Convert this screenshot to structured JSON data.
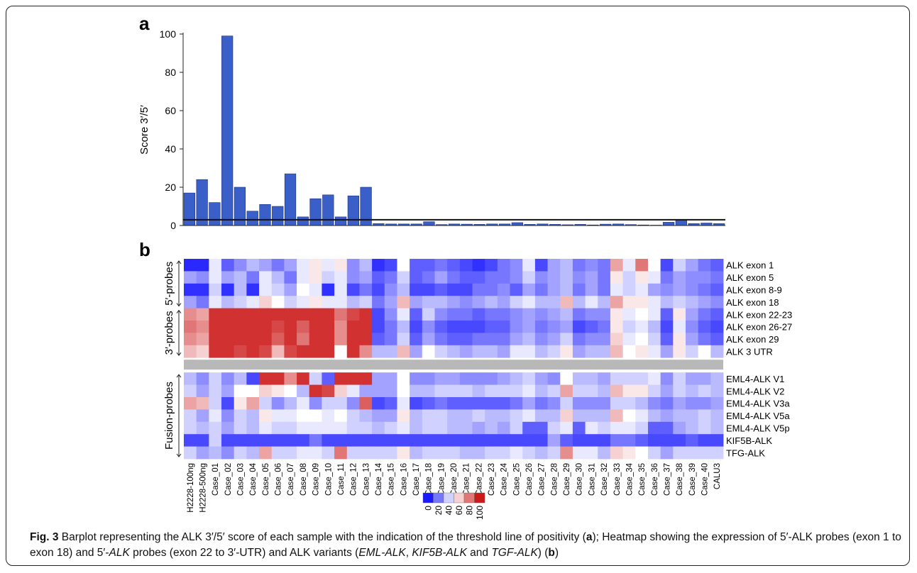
{
  "chart_data": [
    {
      "type": "bar",
      "panel_label": "a",
      "ylabel": "Score 3′/5′",
      "ylim": [
        0,
        100
      ],
      "yticks": [
        0,
        20,
        40,
        60,
        80,
        100
      ],
      "threshold": 3,
      "bar_color": "#3a5fc8",
      "categories": [
        "H2228-100ng",
        "H2228-500ng",
        "Case_01",
        "Case_02",
        "Case_03",
        "Case_04",
        "Case_05",
        "Case_06",
        "Case_07",
        "Case_08",
        "Case_09",
        "Case_10",
        "Case_11",
        "Case_12",
        "Case_13",
        "Case_14",
        "Case_15",
        "Case_16",
        "Case_17",
        "Case_18",
        "Case_19",
        "Case_20",
        "Case_21",
        "Case_22",
        "Case_23",
        "Case_24",
        "Case_25",
        "Case_26",
        "Case_27",
        "Case_28",
        "Case_29",
        "Case_30",
        "Case_31",
        "Case_32",
        "Case_33",
        "Case_34",
        "Case_35",
        "Case_36",
        "Case_37",
        "Case_38",
        "Case_39",
        "Case_40",
        "CALU3"
      ],
      "values": [
        17,
        24,
        12,
        99,
        20,
        7.5,
        11,
        10,
        27,
        4.5,
        14,
        16,
        4.5,
        15.5,
        20,
        1,
        0.8,
        0.8,
        0.8,
        2,
        0.5,
        0.8,
        0.7,
        0.6,
        0.8,
        0.8,
        1.5,
        0.6,
        0.8,
        0.6,
        0.4,
        0.6,
        0.3,
        0.7,
        0.8,
        0.5,
        0.3,
        0.2,
        1.7,
        2.8,
        1,
        1.3,
        1
      ]
    },
    {
      "type": "heatmap",
      "panel_label": "b",
      "color_scale": {
        "ticks": [
          "0",
          "20",
          "40",
          "60",
          "80",
          "100"
        ],
        "colors": [
          "#1a1aff",
          "#ffffff",
          "#cc1a1a"
        ]
      },
      "row_groups": [
        {
          "label": "5′-probes",
          "rows": [
            "ALK exon 1",
            "ALK exon 5",
            "ALK exon 8-9",
            "ALK exon 18"
          ]
        },
        {
          "label": "3′-probes",
          "rows": [
            "ALK exon 22-23",
            "ALK exon 26-27",
            "ALK exon 29",
            "ALK 3 UTR"
          ]
        },
        {
          "label": "Fusion-probes",
          "rows": [
            "EML4-ALK V1",
            "EML4-ALK V2",
            "EML4-ALK V3a",
            "EML4-ALK V5a",
            "EML4-ALK V5p",
            "KIF5B-ALK",
            "TFG-ALK"
          ]
        }
      ],
      "columns": [
        "H2228-100ng",
        "H2228-500ng",
        "Case_01",
        "Case_02",
        "Case_03",
        "Case_04",
        "Case_05",
        "Case_06",
        "Case_07",
        "Case_08",
        "Case_09",
        "Case_10",
        "Case_11",
        "Case_12",
        "Case_13",
        "Case_14",
        "Case_15",
        "Case_16",
        "Case_17",
        "Case_18",
        "Case_19",
        "Case_20",
        "Case_21",
        "Case_22",
        "Case_23",
        "Case_24",
        "Case_25",
        "Case_26",
        "Case_27",
        "Case_28",
        "Case_29",
        "Case_30",
        "Case_31",
        "Case_32",
        "Case_33",
        "Case_34",
        "Case_35",
        "Case_36",
        "Case_37",
        "Case_38",
        "Case_39",
        "Case_40",
        "CALU3"
      ],
      "values": [
        [
          3,
          3,
          45,
          15,
          25,
          35,
          30,
          20,
          30,
          45,
          55,
          45,
          55,
          25,
          35,
          5,
          10,
          50,
          15,
          15,
          20,
          15,
          10,
          5,
          10,
          20,
          25,
          45,
          10,
          30,
          35,
          20,
          25,
          20,
          70,
          45,
          80,
          50,
          10,
          40,
          30,
          20,
          15
        ],
        [
          30,
          25,
          45,
          30,
          35,
          20,
          45,
          35,
          20,
          45,
          55,
          40,
          45,
          25,
          30,
          15,
          20,
          40,
          15,
          20,
          30,
          20,
          15,
          15,
          20,
          20,
          25,
          40,
          25,
          30,
          35,
          25,
          30,
          20,
          55,
          40,
          55,
          45,
          20,
          30,
          25,
          25,
          20
        ],
        [
          5,
          5,
          40,
          5,
          35,
          5,
          45,
          40,
          30,
          50,
          45,
          5,
          45,
          10,
          20,
          10,
          25,
          35,
          10,
          10,
          15,
          10,
          10,
          20,
          20,
          25,
          15,
          30,
          20,
          30,
          35,
          20,
          30,
          20,
          45,
          40,
          45,
          30,
          25,
          30,
          25,
          20,
          15
        ],
        [
          30,
          20,
          45,
          35,
          40,
          45,
          60,
          50,
          40,
          45,
          55,
          45,
          45,
          35,
          40,
          20,
          30,
          65,
          30,
          35,
          35,
          30,
          25,
          30,
          35,
          30,
          40,
          45,
          35,
          35,
          65,
          35,
          45,
          35,
          70,
          55,
          55,
          45,
          35,
          40,
          35,
          30,
          25
        ],
        [
          75,
          70,
          95,
          95,
          95,
          95,
          95,
          95,
          95,
          95,
          95,
          95,
          80,
          90,
          95,
          10,
          25,
          45,
          15,
          40,
          25,
          20,
          20,
          15,
          20,
          20,
          25,
          30,
          25,
          30,
          35,
          20,
          25,
          25,
          55,
          45,
          50,
          45,
          15,
          55,
          30,
          20,
          15
        ],
        [
          80,
          75,
          95,
          95,
          95,
          95,
          95,
          90,
          95,
          85,
          95,
          95,
          75,
          95,
          95,
          10,
          20,
          35,
          10,
          25,
          15,
          10,
          10,
          10,
          15,
          15,
          25,
          30,
          20,
          25,
          30,
          10,
          15,
          20,
          55,
          40,
          45,
          35,
          10,
          45,
          25,
          15,
          10
        ],
        [
          75,
          70,
          95,
          95,
          95,
          95,
          95,
          85,
          95,
          80,
          95,
          95,
          75,
          95,
          95,
          15,
          20,
          40,
          15,
          30,
          20,
          15,
          15,
          20,
          20,
          20,
          30,
          35,
          25,
          30,
          40,
          20,
          25,
          25,
          60,
          45,
          50,
          40,
          15,
          55,
          30,
          20,
          15
        ],
        [
          65,
          60,
          95,
          95,
          90,
          95,
          90,
          65,
          90,
          95,
          95,
          95,
          50,
          95,
          75,
          35,
          35,
          65,
          30,
          50,
          40,
          35,
          30,
          35,
          35,
          30,
          45,
          45,
          35,
          40,
          55,
          30,
          35,
          35,
          65,
          50,
          55,
          45,
          30,
          55,
          40,
          50,
          35
        ],
        [
          35,
          25,
          40,
          25,
          35,
          10,
          95,
          95,
          75,
          95,
          40,
          15,
          95,
          95,
          95,
          30,
          30,
          50,
          25,
          25,
          30,
          30,
          25,
          25,
          25,
          30,
          35,
          40,
          30,
          25,
          50,
          35,
          35,
          30,
          40,
          40,
          40,
          45,
          25,
          40,
          30,
          30,
          35
        ],
        [
          40,
          30,
          40,
          30,
          50,
          50,
          60,
          55,
          50,
          35,
          95,
          90,
          60,
          45,
          30,
          30,
          30,
          50,
          35,
          35,
          40,
          40,
          40,
          35,
          40,
          40,
          40,
          45,
          35,
          40,
          70,
          40,
          40,
          35,
          65,
          55,
          55,
          40,
          30,
          40,
          35,
          40,
          35
        ],
        [
          70,
          65,
          40,
          10,
          55,
          70,
          40,
          25,
          35,
          45,
          25,
          40,
          40,
          25,
          85,
          10,
          15,
          45,
          10,
          15,
          20,
          15,
          15,
          15,
          15,
          15,
          20,
          30,
          20,
          25,
          40,
          25,
          25,
          25,
          40,
          40,
          35,
          25,
          20,
          30,
          25,
          25,
          30
        ],
        [
          40,
          30,
          45,
          25,
          40,
          35,
          55,
          45,
          45,
          50,
          50,
          45,
          50,
          40,
          35,
          30,
          30,
          55,
          35,
          40,
          40,
          35,
          35,
          40,
          35,
          35,
          40,
          45,
          35,
          35,
          60,
          35,
          35,
          35,
          65,
          50,
          45,
          35,
          30,
          35,
          35,
          40,
          35
        ],
        [
          40,
          35,
          40,
          30,
          40,
          35,
          45,
          40,
          40,
          45,
          45,
          45,
          45,
          40,
          40,
          35,
          40,
          45,
          35,
          40,
          40,
          35,
          35,
          30,
          35,
          30,
          40,
          15,
          15,
          40,
          45,
          15,
          45,
          40,
          45,
          45,
          40,
          15,
          15,
          30,
          35,
          40,
          35
        ],
        [
          10,
          10,
          40,
          10,
          10,
          10,
          10,
          10,
          10,
          10,
          20,
          10,
          10,
          10,
          10,
          10,
          10,
          10,
          10,
          10,
          10,
          10,
          10,
          10,
          10,
          10,
          10,
          10,
          10,
          30,
          15,
          10,
          10,
          10,
          20,
          20,
          15,
          10,
          10,
          10,
          15,
          10,
          10
        ],
        [
          40,
          30,
          35,
          25,
          40,
          35,
          70,
          40,
          40,
          45,
          45,
          40,
          80,
          40,
          40,
          40,
          40,
          55,
          35,
          40,
          40,
          40,
          35,
          35,
          40,
          40,
          45,
          40,
          35,
          40,
          75,
          45,
          45,
          35,
          60,
          55,
          50,
          40,
          30,
          40,
          40,
          40,
          40
        ]
      ]
    }
  ],
  "caption": {
    "fig_label": "Fig. 3",
    "parts": [
      {
        "t": " Barplot representing the ALK 3′/5′ score of each sample with the indication of the threshold line of positivity (",
        "s": "n"
      },
      {
        "t": "a",
        "s": "b"
      },
      {
        "t": "); Heatmap showing the expression of 5′-ALK probes (exon 1 to exon 18) and 5′-",
        "s": "n"
      },
      {
        "t": "ALK",
        "s": "i"
      },
      {
        "t": " probes (exon 22 to 3′-UTR) and ALK variants (",
        "s": "n"
      },
      {
        "t": "EML-ALK",
        "s": "i"
      },
      {
        "t": ", ",
        "s": "n"
      },
      {
        "t": "KIF5B-ALK",
        "s": "i"
      },
      {
        "t": " and ",
        "s": "n"
      },
      {
        "t": "TGF-ALK",
        "s": "i"
      },
      {
        "t": ") (",
        "s": "n"
      },
      {
        "t": "b",
        "s": "b"
      },
      {
        "t": ")",
        "s": "n"
      }
    ]
  }
}
